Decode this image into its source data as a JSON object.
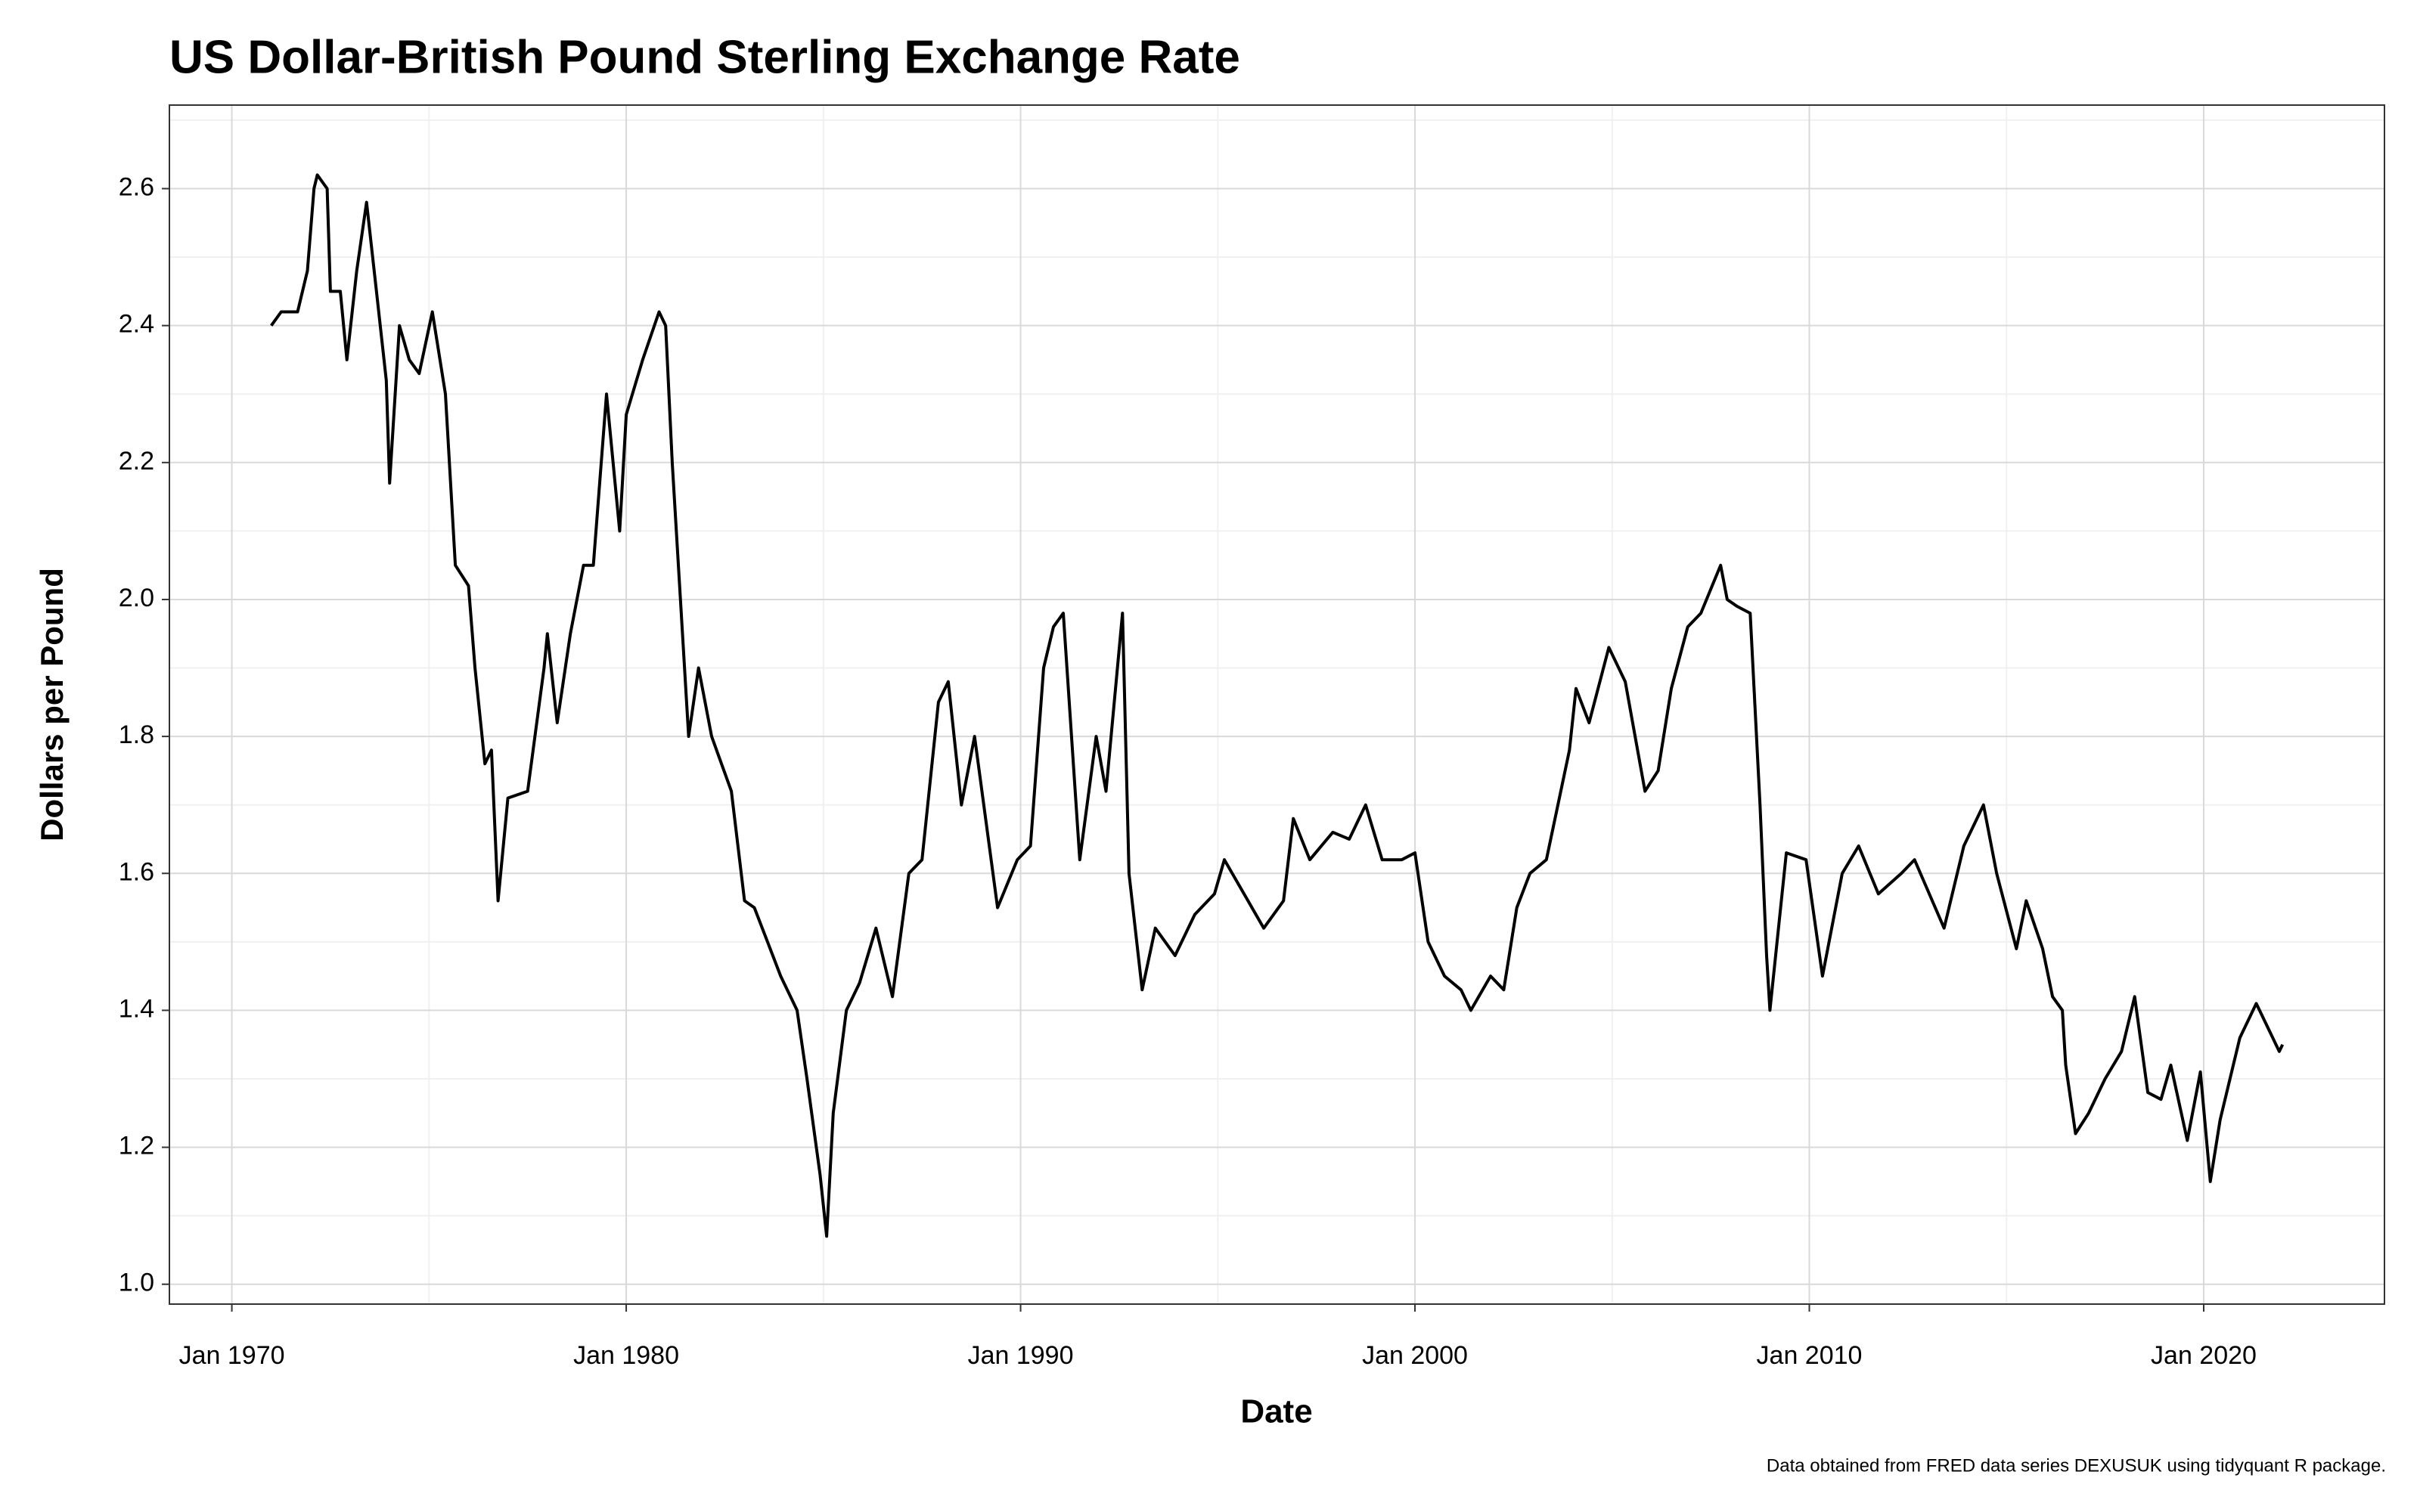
{
  "chart_data": {
    "type": "line",
    "title": "US Dollar-British Pound Sterling Exchange Rate",
    "x_label": "Date",
    "y_label": "Dollars per Pound",
    "caption": "Data obtained from FRED data series DEXUSUK using tidyquant R package.",
    "grid": true,
    "xlim": [
      "1968-06",
      "2024-08"
    ],
    "ylim": [
      0.971,
      2.722
    ],
    "xticks": [
      {
        "value": "1970-01",
        "label": "Jan 1970"
      },
      {
        "value": "1980-01",
        "label": "Jan 1980"
      },
      {
        "value": "1990-01",
        "label": "Jan 1990"
      },
      {
        "value": "2000-01",
        "label": "Jan 2000"
      },
      {
        "value": "2010-01",
        "label": "Jan 2010"
      },
      {
        "value": "2020-01",
        "label": "Jan 2020"
      }
    ],
    "x_minor_grid": [
      "1975-01",
      "1985-01",
      "1995-01",
      "2005-01",
      "2015-01"
    ],
    "yticks": [
      {
        "value": 1,
        "label": "1.0"
      },
      1.2,
      1.4,
      1.6,
      1.8,
      {
        "value": 2,
        "label": "2.0"
      },
      2.2,
      2.4,
      2.6
    ],
    "y_minor_grid": [
      1.1,
      1.3,
      1.5,
      1.7,
      1.9,
      2.1,
      2.3,
      2.5,
      2.7
    ],
    "x": [
      "1971-01",
      "1971-04",
      "1971-09",
      "1971-12",
      "1972-02",
      "1972-03",
      "1972-06",
      "1972-07",
      "1972-10",
      "1972-12",
      "1973-03",
      "1973-06",
      "1973-09",
      "1973-12",
      "1974-01",
      "1974-04",
      "1974-07",
      "1974-10",
      "1975-02",
      "1975-06",
      "1975-09",
      "1976-01",
      "1976-03",
      "1976-06",
      "1976-08",
      "1976-10",
      "1977-01",
      "1977-07",
      "1977-12",
      "1978-01",
      "1978-04",
      "1978-08",
      "1978-12",
      "1979-03",
      "1979-07",
      "1979-11",
      "1980-01",
      "1980-06",
      "1980-11",
      "1981-01",
      "1981-03",
      "1981-08",
      "1981-11",
      "1982-03",
      "1982-09",
      "1983-01",
      "1983-04",
      "1983-08",
      "1983-12",
      "1984-05",
      "1984-08",
      "1984-12",
      "1985-02",
      "1985-04",
      "1985-08",
      "1985-12",
      "1986-05",
      "1986-10",
      "1987-03",
      "1987-07",
      "1987-12",
      "1988-03",
      "1988-07",
      "1988-11",
      "1989-06",
      "1989-12",
      "1990-04",
      "1990-08",
      "1990-11",
      "1991-02",
      "1991-07",
      "1991-12",
      "1992-03",
      "1992-08",
      "1992-10",
      "1993-02",
      "1993-06",
      "1993-12",
      "1994-06",
      "1994-12",
      "1995-03",
      "1995-09",
      "1996-03",
      "1996-09",
      "1996-12",
      "1997-05",
      "1997-12",
      "1998-05",
      "1998-10",
      "1999-03",
      "1999-09",
      "2000-01",
      "2000-05",
      "2000-10",
      "2001-03",
      "2001-06",
      "2001-12",
      "2002-04",
      "2002-08",
      "2002-12",
      "2003-05",
      "2003-12",
      "2004-02",
      "2004-06",
      "2004-12",
      "2005-05",
      "2005-11",
      "2006-03",
      "2006-07",
      "2006-12",
      "2007-04",
      "2007-10",
      "2007-12",
      "2008-03",
      "2008-07",
      "2008-10",
      "2008-12",
      "2009-01",
      "2009-06",
      "2009-12",
      "2010-05",
      "2010-11",
      "2011-04",
      "2011-10",
      "2012-05",
      "2012-09",
      "2013-06",
      "2013-12",
      "2014-06",
      "2014-10",
      "2015-04",
      "2015-07",
      "2015-12",
      "2016-03",
      "2016-06",
      "2016-07",
      "2016-10",
      "2017-02",
      "2017-07",
      "2017-12",
      "2018-04",
      "2018-08",
      "2018-12",
      "2019-03",
      "2019-08",
      "2019-12",
      "2020-03",
      "2020-06",
      "2020-12",
      "2021-05",
      "2021-09",
      "2021-12",
      "2022-01"
    ],
    "series": [
      {
        "name": "DEXUSUK",
        "color": "#000000",
        "values": [
          2.4,
          2.42,
          2.42,
          2.48,
          2.6,
          2.62,
          2.6,
          2.45,
          2.45,
          2.35,
          2.48,
          2.58,
          2.45,
          2.32,
          2.17,
          2.4,
          2.35,
          2.33,
          2.42,
          2.3,
          2.05,
          2.02,
          1.9,
          1.76,
          1.78,
          1.56,
          1.71,
          1.72,
          1.9,
          1.95,
          1.82,
          1.95,
          2.05,
          2.05,
          2.3,
          2.1,
          2.27,
          2.35,
          2.42,
          2.4,
          2.2,
          1.8,
          1.9,
          1.8,
          1.72,
          1.56,
          1.55,
          1.5,
          1.45,
          1.4,
          1.3,
          1.16,
          1.07,
          1.25,
          1.4,
          1.44,
          1.52,
          1.42,
          1.6,
          1.62,
          1.85,
          1.88,
          1.7,
          1.8,
          1.55,
          1.62,
          1.64,
          1.9,
          1.96,
          1.98,
          1.62,
          1.8,
          1.72,
          1.98,
          1.6,
          1.43,
          1.52,
          1.48,
          1.54,
          1.57,
          1.62,
          1.57,
          1.52,
          1.56,
          1.68,
          1.62,
          1.66,
          1.65,
          1.7,
          1.62,
          1.62,
          1.63,
          1.5,
          1.45,
          1.43,
          1.4,
          1.45,
          1.43,
          1.55,
          1.6,
          1.62,
          1.78,
          1.87,
          1.82,
          1.93,
          1.88,
          1.72,
          1.75,
          1.87,
          1.96,
          1.98,
          2.05,
          2.0,
          1.99,
          1.98,
          1.7,
          1.48,
          1.4,
          1.63,
          1.62,
          1.45,
          1.6,
          1.64,
          1.57,
          1.6,
          1.62,
          1.52,
          1.64,
          1.7,
          1.6,
          1.49,
          1.56,
          1.49,
          1.42,
          1.4,
          1.32,
          1.22,
          1.25,
          1.3,
          1.34,
          1.42,
          1.28,
          1.27,
          1.32,
          1.21,
          1.31,
          1.15,
          1.24,
          1.36,
          1.41,
          1.37,
          1.34,
          1.35
        ]
      }
    ]
  }
}
